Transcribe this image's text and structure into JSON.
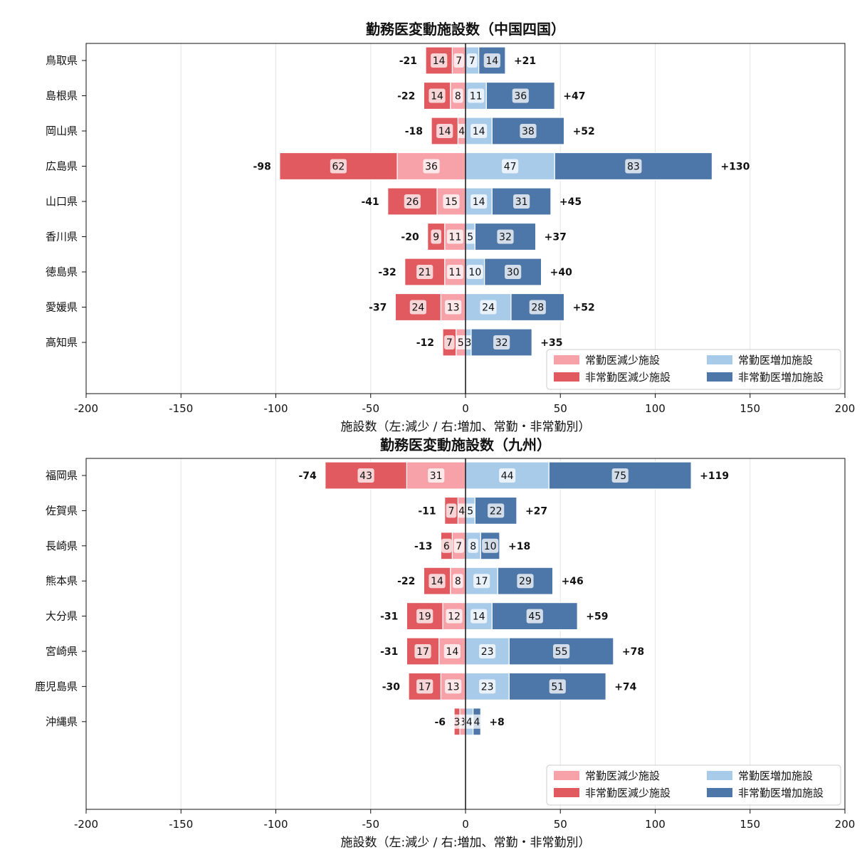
{
  "colors": {
    "fulltime_decrease": "#f7a1a8",
    "parttime_decrease": "#e05a5f",
    "fulltime_increase": "#a7cbe9",
    "parttime_increase": "#4d77a8"
  },
  "legend": {
    "fulltime_decrease": "常勤医減少施設",
    "parttime_decrease": "非常勤医減少施設",
    "fulltime_increase": "常勤医増加施設",
    "parttime_increase": "非常勤医増加施設"
  },
  "chart_data": [
    {
      "type": "bar",
      "orientation": "horizontal-diverging-stacked",
      "title": "勤務医変動施設数（中国四国）",
      "xlabel": "施設数（左:減少 / 右:増加、常勤・非常勤別）",
      "xlim": [
        -200,
        200
      ],
      "xticks": [
        "-200",
        "-150",
        "-100",
        "-50",
        "0",
        "50",
        "100",
        "150",
        "200"
      ],
      "grid": "vertical",
      "legend_position": "lower-right",
      "categories": [
        "鳥取県",
        "島根県",
        "岡山県",
        "広島県",
        "山口県",
        "香川県",
        "徳島県",
        "愛媛県",
        "高知県"
      ],
      "series": [
        {
          "name": "常勤医減少施設",
          "key": "fulltime_decrease",
          "values": [
            7,
            8,
            4,
            36,
            15,
            11,
            11,
            13,
            5
          ]
        },
        {
          "name": "非常勤医減少施設",
          "key": "parttime_decrease",
          "values": [
            14,
            14,
            14,
            62,
            26,
            9,
            21,
            24,
            7
          ]
        },
        {
          "name": "常勤医増加施設",
          "key": "fulltime_increase",
          "values": [
            7,
            11,
            14,
            47,
            14,
            5,
            10,
            24,
            3
          ]
        },
        {
          "name": "非常勤医増加施設",
          "key": "parttime_increase",
          "values": [
            14,
            36,
            38,
            83,
            31,
            32,
            30,
            28,
            32
          ]
        }
      ],
      "totals_decrease": [
        "-21",
        "-22",
        "-18",
        "-98",
        "-41",
        "-20",
        "-32",
        "-37",
        "-12"
      ],
      "totals_increase": [
        "+21",
        "+47",
        "+52",
        "+130",
        "+45",
        "+37",
        "+40",
        "+52",
        "+35"
      ],
      "legend": [
        "常勤医減少施設",
        "非常勤医減少施設",
        "常勤医増加施設",
        "非常勤医増加施設"
      ]
    },
    {
      "type": "bar",
      "orientation": "horizontal-diverging-stacked",
      "title": "勤務医変動施設数（九州）",
      "xlabel": "施設数（左:減少 / 右:増加、常勤・非常勤別）",
      "xlim": [
        -200,
        200
      ],
      "xticks": [
        "-200",
        "-150",
        "-100",
        "-50",
        "0",
        "50",
        "100",
        "150",
        "200"
      ],
      "grid": "vertical",
      "legend_position": "lower-right",
      "categories": [
        "福岡県",
        "佐賀県",
        "長崎県",
        "熊本県",
        "大分県",
        "宮崎県",
        "鹿児島県",
        "沖縄県"
      ],
      "series": [
        {
          "name": "常勤医減少施設",
          "key": "fulltime_decrease",
          "values": [
            31,
            4,
            7,
            8,
            12,
            14,
            13,
            3
          ]
        },
        {
          "name": "非常勤医減少施設",
          "key": "parttime_decrease",
          "values": [
            43,
            7,
            6,
            14,
            19,
            17,
            17,
            3
          ]
        },
        {
          "name": "常勤医増加施設",
          "key": "fulltime_increase",
          "values": [
            44,
            5,
            8,
            17,
            14,
            23,
            23,
            4
          ]
        },
        {
          "name": "非常勤医増加施設",
          "key": "parttime_increase",
          "values": [
            75,
            22,
            10,
            29,
            45,
            55,
            51,
            4
          ]
        }
      ],
      "totals_decrease": [
        "-74",
        "-11",
        "-13",
        "-22",
        "-31",
        "-31",
        "-30",
        "-6"
      ],
      "totals_increase": [
        "+119",
        "+27",
        "+18",
        "+46",
        "+59",
        "+78",
        "+74",
        "+8"
      ],
      "legend": [
        "常勤医減少施設",
        "非常勤医減少施設",
        "常勤医増加施設",
        "非常勤医増加施設"
      ]
    }
  ]
}
